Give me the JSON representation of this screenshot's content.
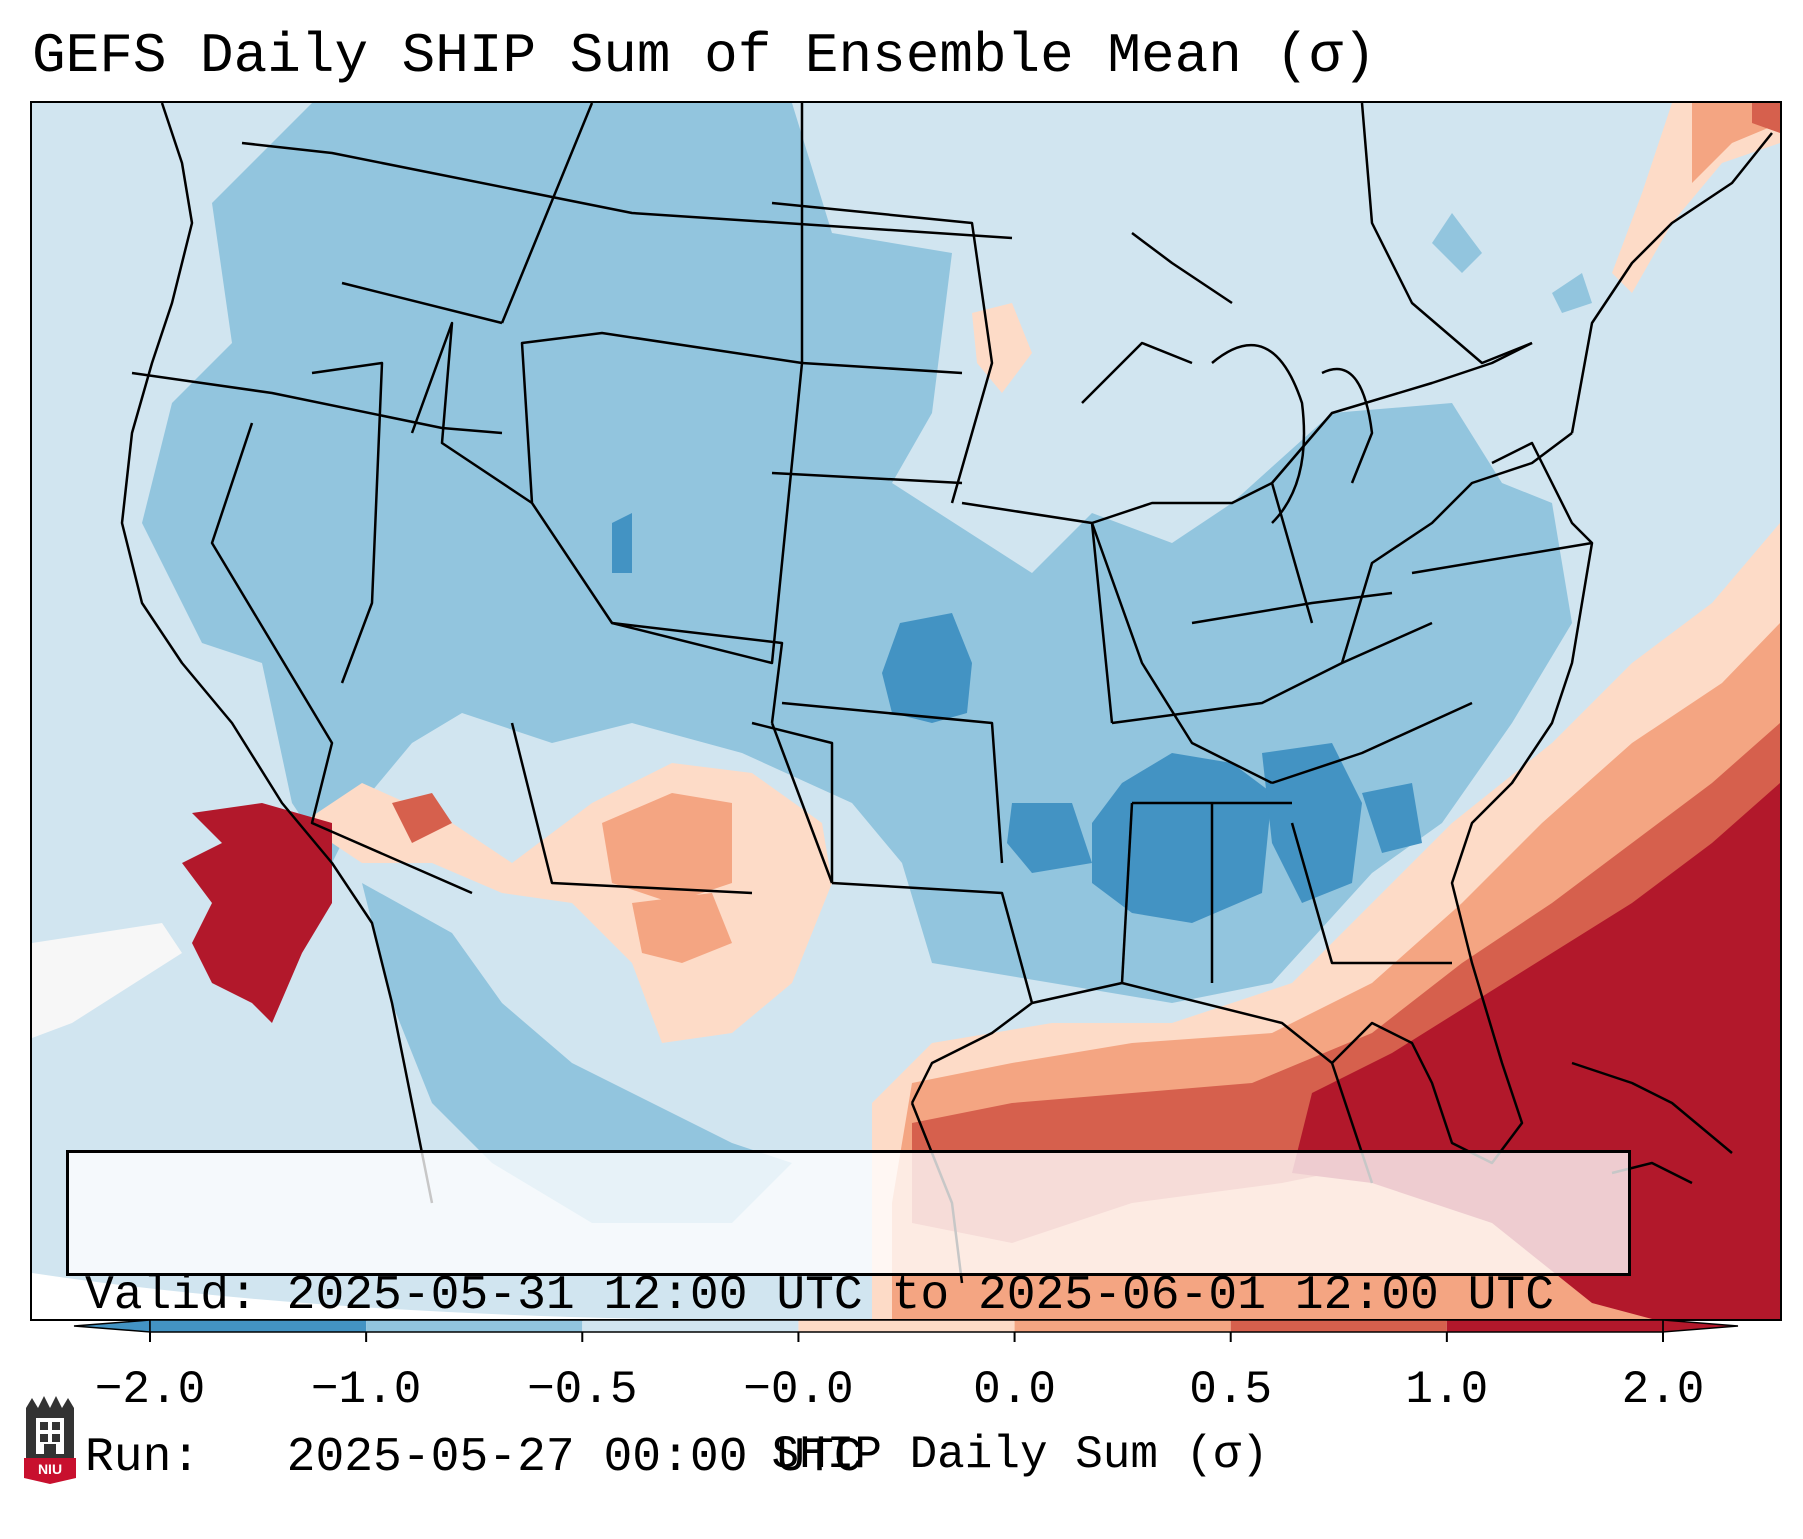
{
  "title": "GEFS Daily SHIP Sum of Ensemble Mean (σ)",
  "info": {
    "valid_line": "Valid: 2025-05-31 12:00 UTC to 2025-06-01 12:00 UTC",
    "run_line": "Run:   2025-05-27 00:00 UTC"
  },
  "colorbar": {
    "label": "SHIP Daily Sum (σ)",
    "ticks": [
      "−2.0",
      "−1.0",
      "−0.5",
      "−0.0",
      "0.0",
      "0.5",
      "1.0",
      "2.0"
    ],
    "colors": [
      "#4393c3",
      "#92c5de",
      "#d1e5f0",
      "#f7f7f7",
      "#fddbc7",
      "#f4a582",
      "#d6604d",
      "#b2182b"
    ],
    "extend": "both"
  },
  "map": {
    "region": "Continental United States",
    "colors": {
      "lt_blue": "#d1e5f0",
      "md_blue": "#92c5de",
      "dk_blue": "#4393c3",
      "white": "#f7f7f7",
      "lt_red": "#fddbc7",
      "md_red": "#f4a582",
      "red": "#d6604d",
      "dk_red": "#b2182b",
      "border": "#000000"
    }
  },
  "logo": {
    "text": "NIU"
  }
}
